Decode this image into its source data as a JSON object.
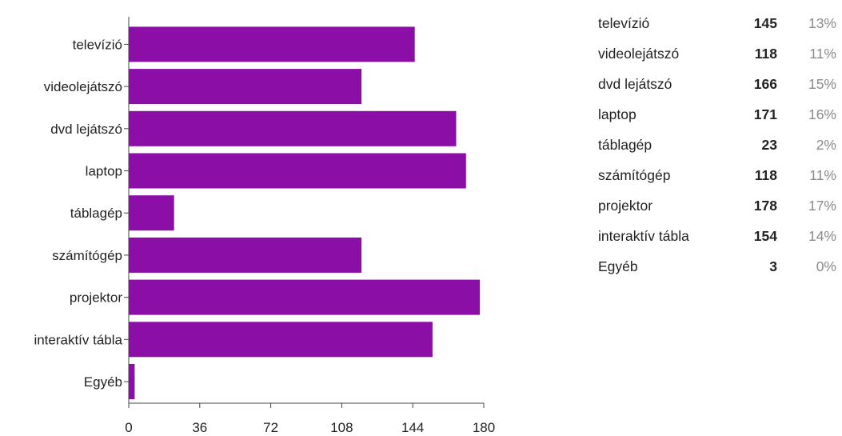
{
  "chart_data": {
    "type": "bar",
    "orientation": "horizontal",
    "categories": [
      "televízió",
      "videolejátszó",
      "dvd lejátszó",
      "laptop",
      "táblagép",
      "számítógép",
      "projektor",
      "interaktív tábla",
      "Egyéb"
    ],
    "values": [
      145,
      118,
      166,
      171,
      23,
      118,
      178,
      154,
      3
    ],
    "xlim": [
      0,
      180
    ],
    "xticks": [
      "0",
      "36",
      "72",
      "108",
      "144",
      "180"
    ],
    "bar_color": "#8b0ea6",
    "grid": false
  },
  "summary_table": [
    {
      "label": "televízió",
      "count": "145",
      "percent": "13%"
    },
    {
      "label": "videolejátszó",
      "count": "118",
      "percent": "11%"
    },
    {
      "label": "dvd lejátszó",
      "count": "166",
      "percent": "15%"
    },
    {
      "label": "laptop",
      "count": "171",
      "percent": "16%"
    },
    {
      "label": "táblagép",
      "count": "23",
      "percent": "2%"
    },
    {
      "label": "számítógép",
      "count": "118",
      "percent": "11%"
    },
    {
      "label": "projektor",
      "count": "178",
      "percent": "17%"
    },
    {
      "label": "interaktív tábla",
      "count": "154",
      "percent": "14%"
    },
    {
      "label": "Egyéb",
      "count": "3",
      "percent": "0%"
    }
  ]
}
